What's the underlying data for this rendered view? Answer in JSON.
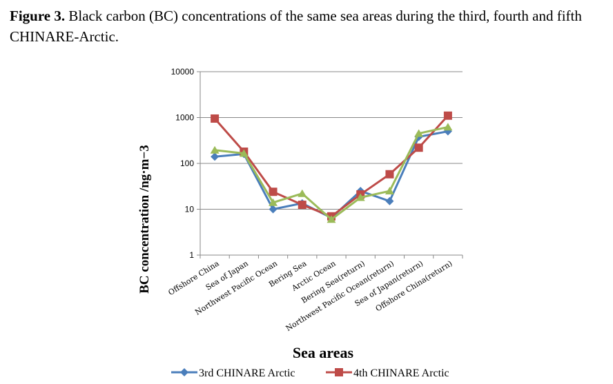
{
  "caption": {
    "label": "Figure 3.",
    "text": " Black carbon (BC) concentrations of the same sea areas during the third, fourth and fifth CHINARE-Arctic."
  },
  "chart_data": {
    "type": "line",
    "title": "",
    "xlabel": "Sea areas",
    "ylabel": "BC concentration /ng·m−3",
    "y_scale": "log",
    "ylim": [
      1,
      10000
    ],
    "y_ticks": [
      1,
      10,
      100,
      1000,
      10000
    ],
    "y_tick_labels": [
      "1",
      "10",
      "100",
      "1000",
      "10000"
    ],
    "grid": "horizontal",
    "legend_position": "bottom",
    "categories": [
      "Offshore China",
      "Sea of Japan",
      "Northwest Pacific Ocean",
      "Bering Sea",
      "Arctic Ocean",
      "Bering Sea(return)",
      "Northwest Pacific Ocean(return)",
      "Sea of Japan(return)",
      "Offshore China(return)"
    ],
    "series": [
      {
        "name": "3rd CHINARE Arctic",
        "color": "#4a7ebb",
        "marker": "diamond",
        "values": [
          140,
          160,
          10,
          13.5,
          6.5,
          25,
          15,
          380,
          500
        ]
      },
      {
        "name": "4th CHINARE Arctic",
        "color": "#be4b48",
        "marker": "square",
        "values": [
          950,
          180,
          24,
          12.5,
          7,
          21,
          58,
          220,
          1100
        ]
      },
      {
        "name": "",
        "color": "#9bbb59",
        "marker": "triangle",
        "values": [
          195,
          165,
          14,
          22,
          6,
          18,
          25,
          450,
          620
        ]
      }
    ]
  }
}
